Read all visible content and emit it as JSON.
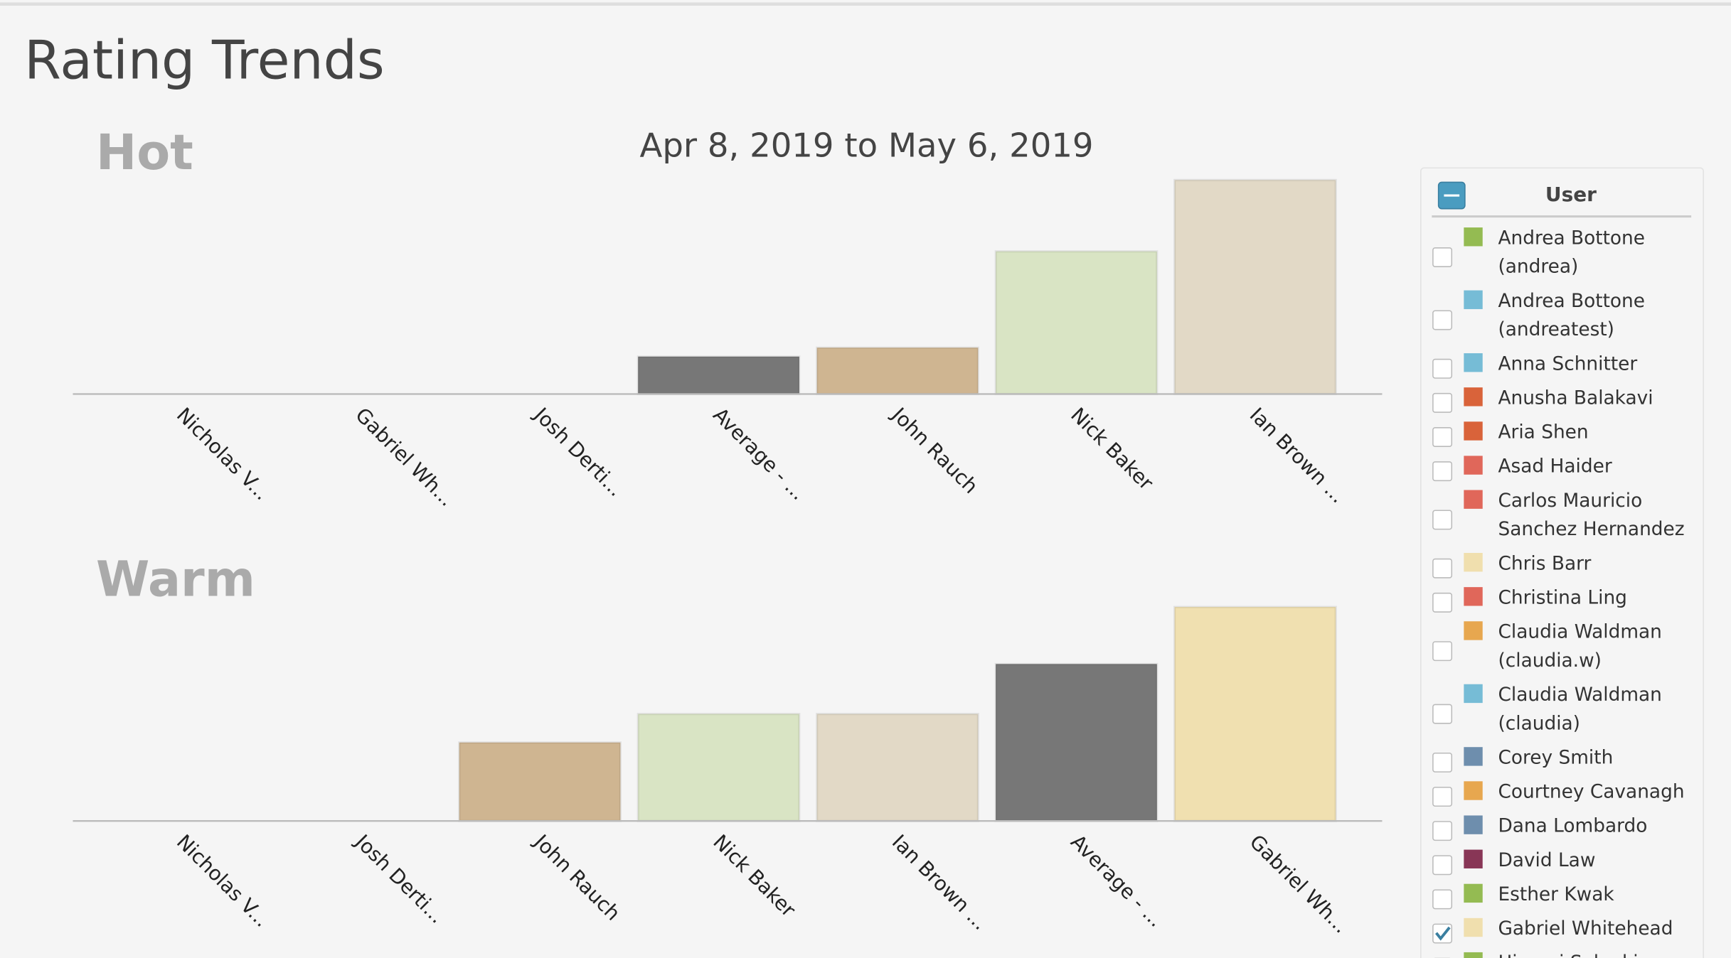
{
  "page": {
    "title": "Rating Trends"
  },
  "chart_data": [
    {
      "type": "bar",
      "title": "Hot",
      "subtitle": "Apr 8, 2019 to May 6, 2019",
      "categories": [
        "Nicholas V...",
        "Gabriel Wh...",
        "Josh Derti...",
        "Average - ...",
        "John Rauch",
        "Nick Baker",
        "Ian Brown ..."
      ],
      "values": [
        0,
        0,
        0,
        1.05,
        1.3,
        4,
        6
      ],
      "colors": [
        "#e0675a",
        "#f0dfae",
        "#76bcd6",
        "#777777",
        "#cfb591",
        "#d9e4c4",
        "#e2d9c6"
      ],
      "ylim": [
        0,
        6
      ]
    },
    {
      "type": "bar",
      "title": "Warm",
      "categories": [
        "Nicholas V...",
        "Josh Derti...",
        "John Rauch",
        "Nick Baker",
        "Ian Brown ...",
        "Average - ...",
        "Gabriel Wh..."
      ],
      "values": [
        0,
        0,
        2.2,
        3,
        3,
        4.4,
        6
      ],
      "colors": [
        "#e0675a",
        "#76bcd6",
        "#cfb591",
        "#d9e4c4",
        "#e2d9c6",
        "#777777",
        "#f0e0b0"
      ],
      "ylim": [
        0,
        6
      ]
    }
  ],
  "legend": {
    "title": "User",
    "items": [
      {
        "label": "Andrea Bottone (andrea)",
        "color": "#94bb52",
        "checked": false
      },
      {
        "label": "Andrea Bottone (andreatest)",
        "color": "#76bcd6",
        "checked": false
      },
      {
        "label": "Anna Schnitter",
        "color": "#76bcd6",
        "checked": false
      },
      {
        "label": "Anusha Balakavi",
        "color": "#d9633a",
        "checked": false
      },
      {
        "label": "Aria Shen",
        "color": "#d9633a",
        "checked": false
      },
      {
        "label": "Asad Haider",
        "color": "#e0675a",
        "checked": false
      },
      {
        "label": "Carlos Mauricio Sanchez Hernandez",
        "color": "#e0675a",
        "checked": false
      },
      {
        "label": "Chris Barr",
        "color": "#f0dfae",
        "checked": false
      },
      {
        "label": "Christina Ling",
        "color": "#e0675a",
        "checked": false
      },
      {
        "label": "Claudia Waldman (claudia.w)",
        "color": "#e7a74f",
        "checked": false
      },
      {
        "label": "Claudia Waldman (claudia)",
        "color": "#76bcd6",
        "checked": false
      },
      {
        "label": "Corey Smith",
        "color": "#6e8ead",
        "checked": false
      },
      {
        "label": "Courtney Cavanagh",
        "color": "#e7a74f",
        "checked": false
      },
      {
        "label": "Dana Lombardo",
        "color": "#6e8ead",
        "checked": false
      },
      {
        "label": "David Law",
        "color": "#883656",
        "checked": false
      },
      {
        "label": "Esther Kwak",
        "color": "#94bb52",
        "checked": false
      },
      {
        "label": "Gabriel Whitehead",
        "color": "#f0dfae",
        "checked": true
      },
      {
        "label": "Himani Solanki",
        "color": "#94bb52",
        "checked": false
      }
    ]
  }
}
